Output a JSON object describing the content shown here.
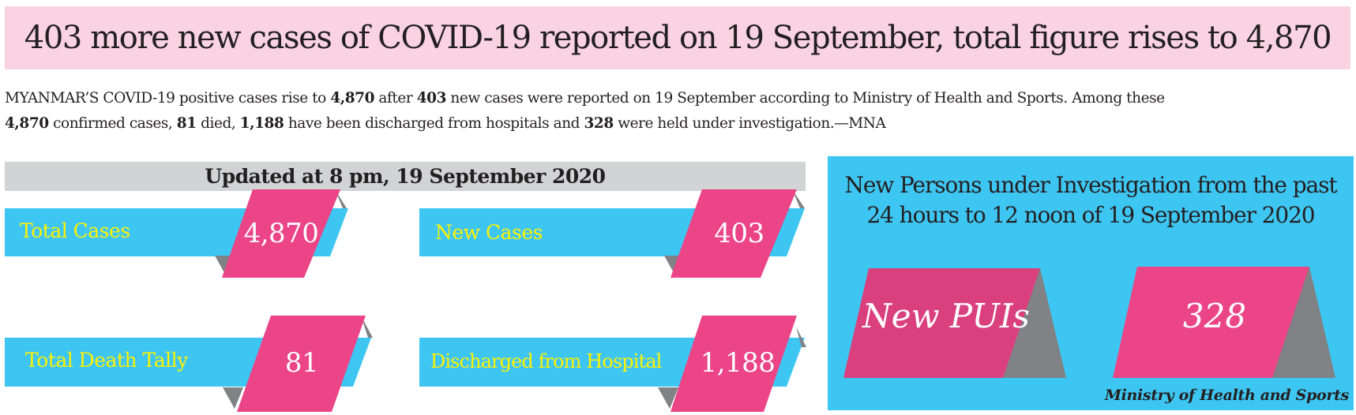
{
  "headline": "403 more new cases of COVID-19 reported on 19 September, total figure rises to 4,870",
  "intro": {
    "line1": [
      {
        "t": "MYANMAR’S COVID-19 positive cases rise to ",
        "b": false
      },
      {
        "t": "4,870",
        "b": true
      },
      {
        "t": " after ",
        "b": false
      },
      {
        "t": "403",
        "b": true
      },
      {
        "t": " new cases were reported on 19 September according to Ministry of Health and Sports. Among these",
        "b": false
      }
    ],
    "line2": [
      {
        "t": "4,870",
        "b": true
      },
      {
        "t": " confirmed cases, ",
        "b": false
      },
      {
        "t": "81",
        "b": true
      },
      {
        "t": " died, ",
        "b": false
      },
      {
        "t": "1,188",
        "b": true
      },
      {
        "t": " have been discharged from hospitals and ",
        "b": false
      },
      {
        "t": "328",
        "b": true
      },
      {
        "t": " were held under investigation.—MNA",
        "b": false
      }
    ]
  },
  "updated": "Updated at 8 pm, 19 September 2020",
  "stats": {
    "total_cases": {
      "label": "Total Cases",
      "value": "4,870"
    },
    "new_cases": {
      "label": "New Cases",
      "value": "403"
    },
    "deaths": {
      "label": "Total Death Tally",
      "value": "81"
    },
    "discharged": {
      "label": "Discharged from Hospital",
      "value": "1,188"
    }
  },
  "pui": {
    "title_line1": "New Persons under Investigation from the past",
    "title_line2": "24 hours to 12 noon of 19 September 2020",
    "label": "New PUIs",
    "value": "328",
    "source": "Ministry of Health and Sports"
  },
  "colors": {
    "pink_banner": "#f9d3e2",
    "cyan": "#3ec6f2",
    "magenta": "#eb4588",
    "gray": "#808285",
    "light_gray": "#d1d3d4",
    "yellow": "#fff200"
  }
}
